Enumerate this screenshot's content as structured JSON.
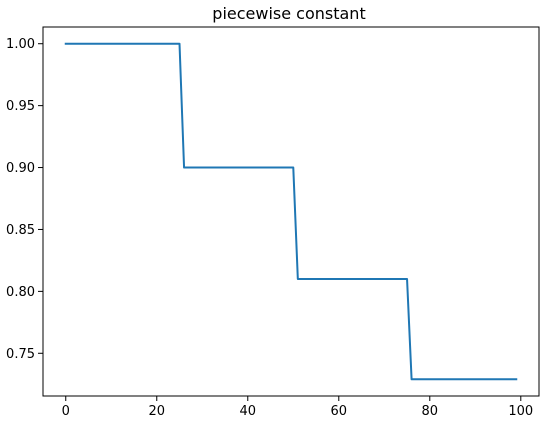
{
  "chart_data": {
    "type": "line",
    "title": "piecewise constant",
    "xlabel": "",
    "ylabel": "",
    "xlim": [
      -5,
      104
    ],
    "ylim": [
      0.7155,
      1.0135
    ],
    "x_ticks": [
      0,
      20,
      40,
      60,
      80,
      100
    ],
    "x_tick_labels": [
      "0",
      "20",
      "40",
      "60",
      "80",
      "100"
    ],
    "y_ticks": [
      0.75,
      0.8,
      0.85,
      0.9,
      0.95,
      1.0
    ],
    "y_tick_labels": [
      "0.75",
      "0.80",
      "0.85",
      "0.90",
      "0.95",
      "1.00"
    ],
    "grid": false,
    "legend": "none",
    "series": [
      {
        "color": "#1f77b4",
        "x": [
          0,
          25,
          26,
          50,
          51,
          75,
          76,
          99
        ],
        "y": [
          1.0,
          1.0,
          0.9,
          0.9,
          0.81,
          0.81,
          0.729,
          0.729
        ]
      }
    ]
  }
}
